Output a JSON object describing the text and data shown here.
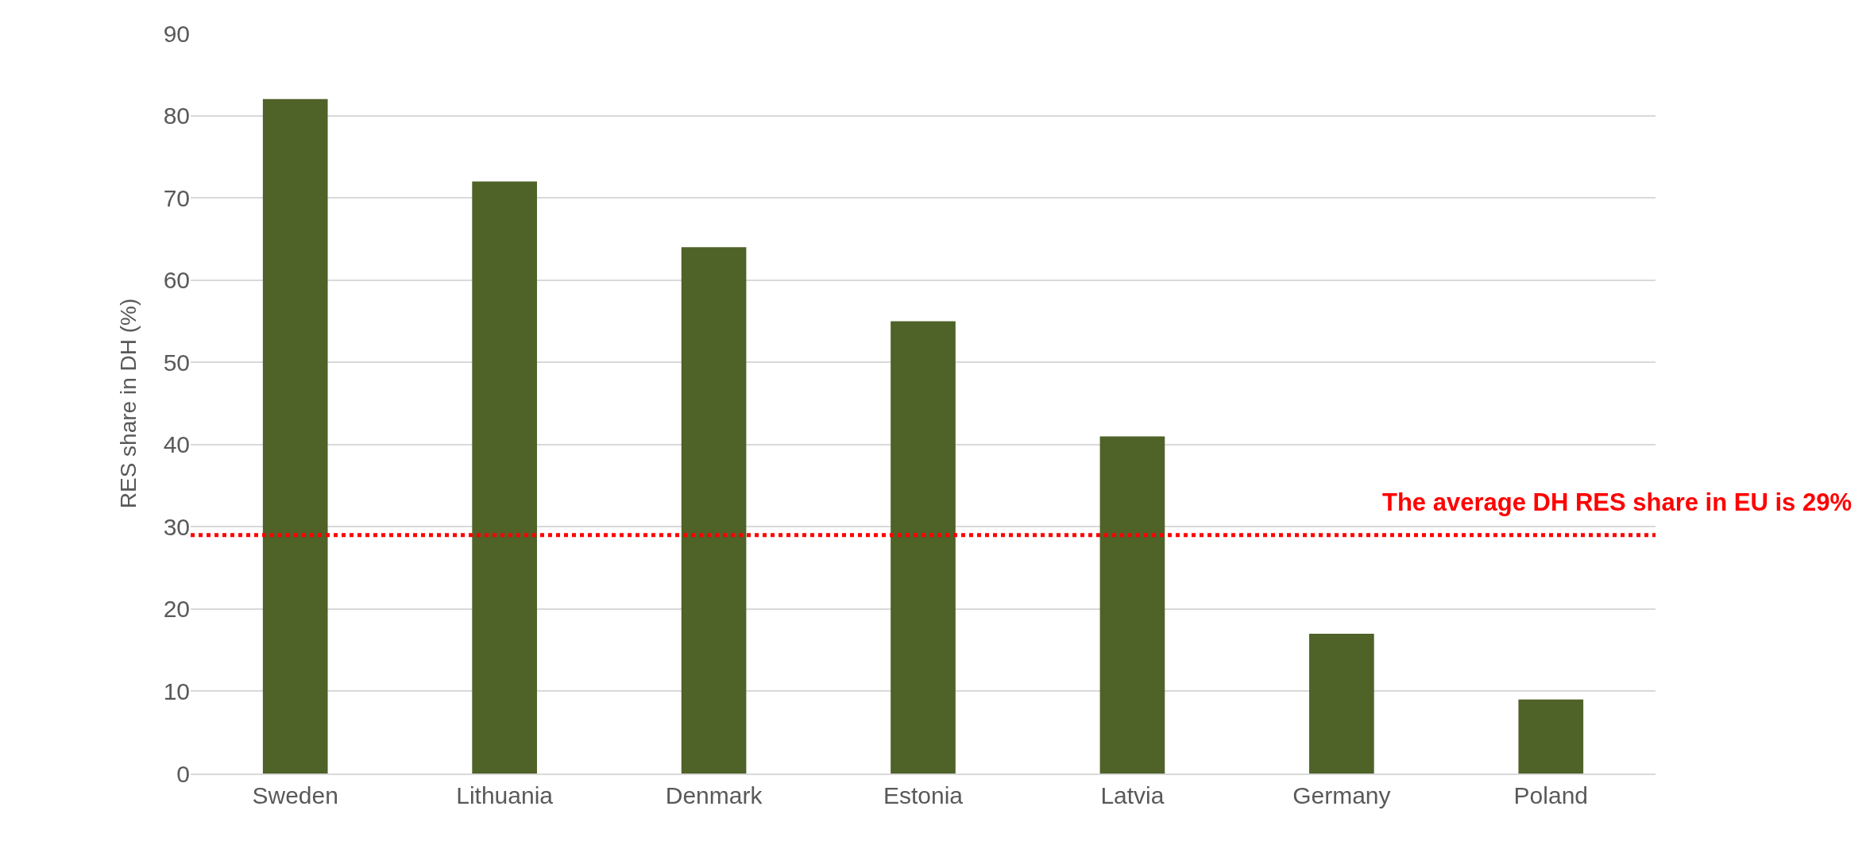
{
  "chart_data": {
    "type": "bar",
    "ylabel": "RES share in DH (%)",
    "categories": [
      "Sweden",
      "Lithuania",
      "Denmark",
      "Estonia",
      "Latvia",
      "Germany",
      "Poland"
    ],
    "values": [
      82,
      72,
      64,
      55,
      41,
      17,
      9
    ],
    "color": "#4f6228",
    "ylim": [
      0,
      90
    ],
    "yticks": [
      0,
      10,
      20,
      30,
      40,
      50,
      60,
      70,
      80,
      90
    ],
    "grid": "y",
    "ref_lines": [
      {
        "axis": "y",
        "value": 29,
        "label": "The average DH RES share in EU is 29%",
        "color": "#ff0000",
        "line_style": "dotted"
      }
    ]
  }
}
